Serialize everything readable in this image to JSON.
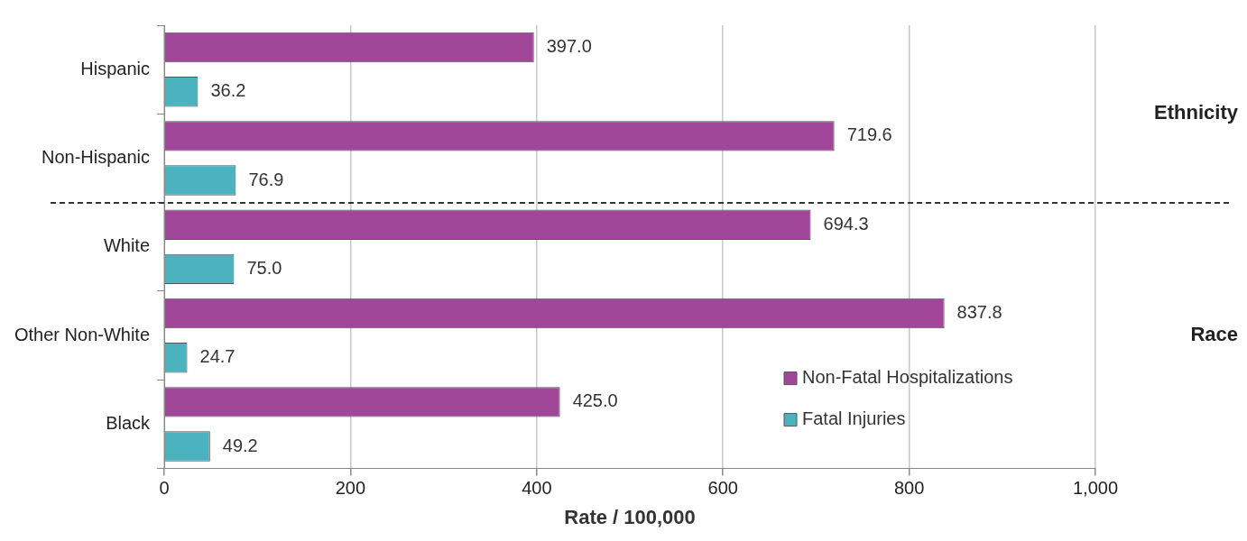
{
  "chart_data": {
    "type": "bar",
    "orientation": "horizontal",
    "categories": [
      "Hispanic",
      "Non-Hispanic",
      "White",
      "Other Non-White",
      "Black"
    ],
    "series": [
      {
        "name": "Non-Fatal Hospitalizations",
        "color": "#a0479a",
        "values": [
          397.0,
          719.6,
          694.3,
          837.8,
          425.0
        ],
        "value_labels": [
          "397.0",
          "719.6",
          "694.3",
          "837.8",
          "425.0"
        ]
      },
      {
        "name": "Fatal Injuries",
        "color": "#4bb3bf",
        "values": [
          36.2,
          76.9,
          75.0,
          24.7,
          49.2
        ],
        "value_labels": [
          "36.2",
          "76.9",
          "75.0",
          "24.7",
          "49.2"
        ]
      }
    ],
    "xlim": [
      0,
      1000
    ],
    "xticks": [
      0,
      200,
      400,
      600,
      800,
      {
        "value": 1000,
        "label": "1,000"
      }
    ],
    "xlabel": "Rate / 100,000",
    "grid": "x",
    "legend": "bottom right",
    "annotations": [
      "Ethnicity",
      "Race"
    ]
  }
}
